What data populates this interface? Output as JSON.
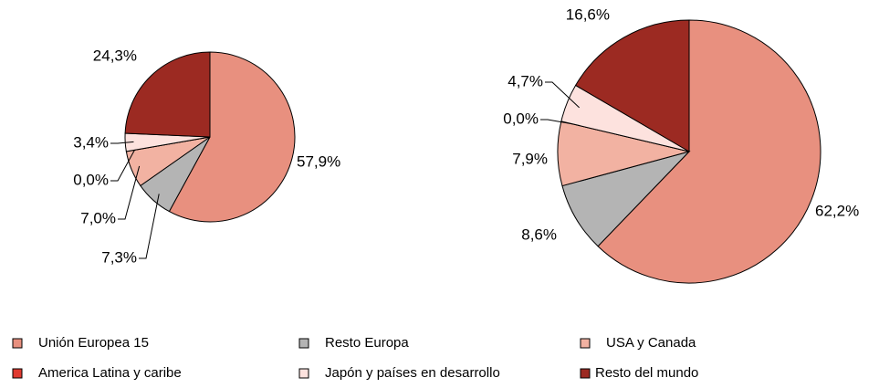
{
  "chart_data": [
    {
      "type": "pie",
      "categories": [
        "Unión Europea 15",
        "Resto Europa",
        "USA y Canada",
        "America Latina y caribe",
        "Japón y países en desarrollo",
        "Resto del mundo"
      ],
      "colors": [
        "#e8907f",
        "#b4b4b4",
        "#f2b2a2",
        "#e03a30",
        "#fde2de",
        "#9c2a22"
      ],
      "values": [
        57.9,
        7.3,
        7.0,
        0.0,
        3.4,
        24.3
      ],
      "value_labels": [
        "57,9%",
        "7,3%",
        "7,0%",
        "0,0%",
        "3,4%",
        "24,3%"
      ]
    },
    {
      "type": "pie",
      "categories": [
        "Unión Europea 15",
        "Resto Europa",
        "USA y Canada",
        "America Latina y caribe",
        "Japón y países en desarrollo",
        "Resto del mundo"
      ],
      "colors": [
        "#e8907f",
        "#b4b4b4",
        "#f2b2a2",
        "#e03a30",
        "#fde2de",
        "#9c2a22"
      ],
      "values": [
        62.2,
        8.6,
        7.9,
        0.0,
        4.7,
        16.6
      ],
      "value_labels": [
        "62,2%",
        "8,6%",
        "7,9%",
        "0,0%",
        "4,7%",
        "16,6%"
      ]
    }
  ]
}
